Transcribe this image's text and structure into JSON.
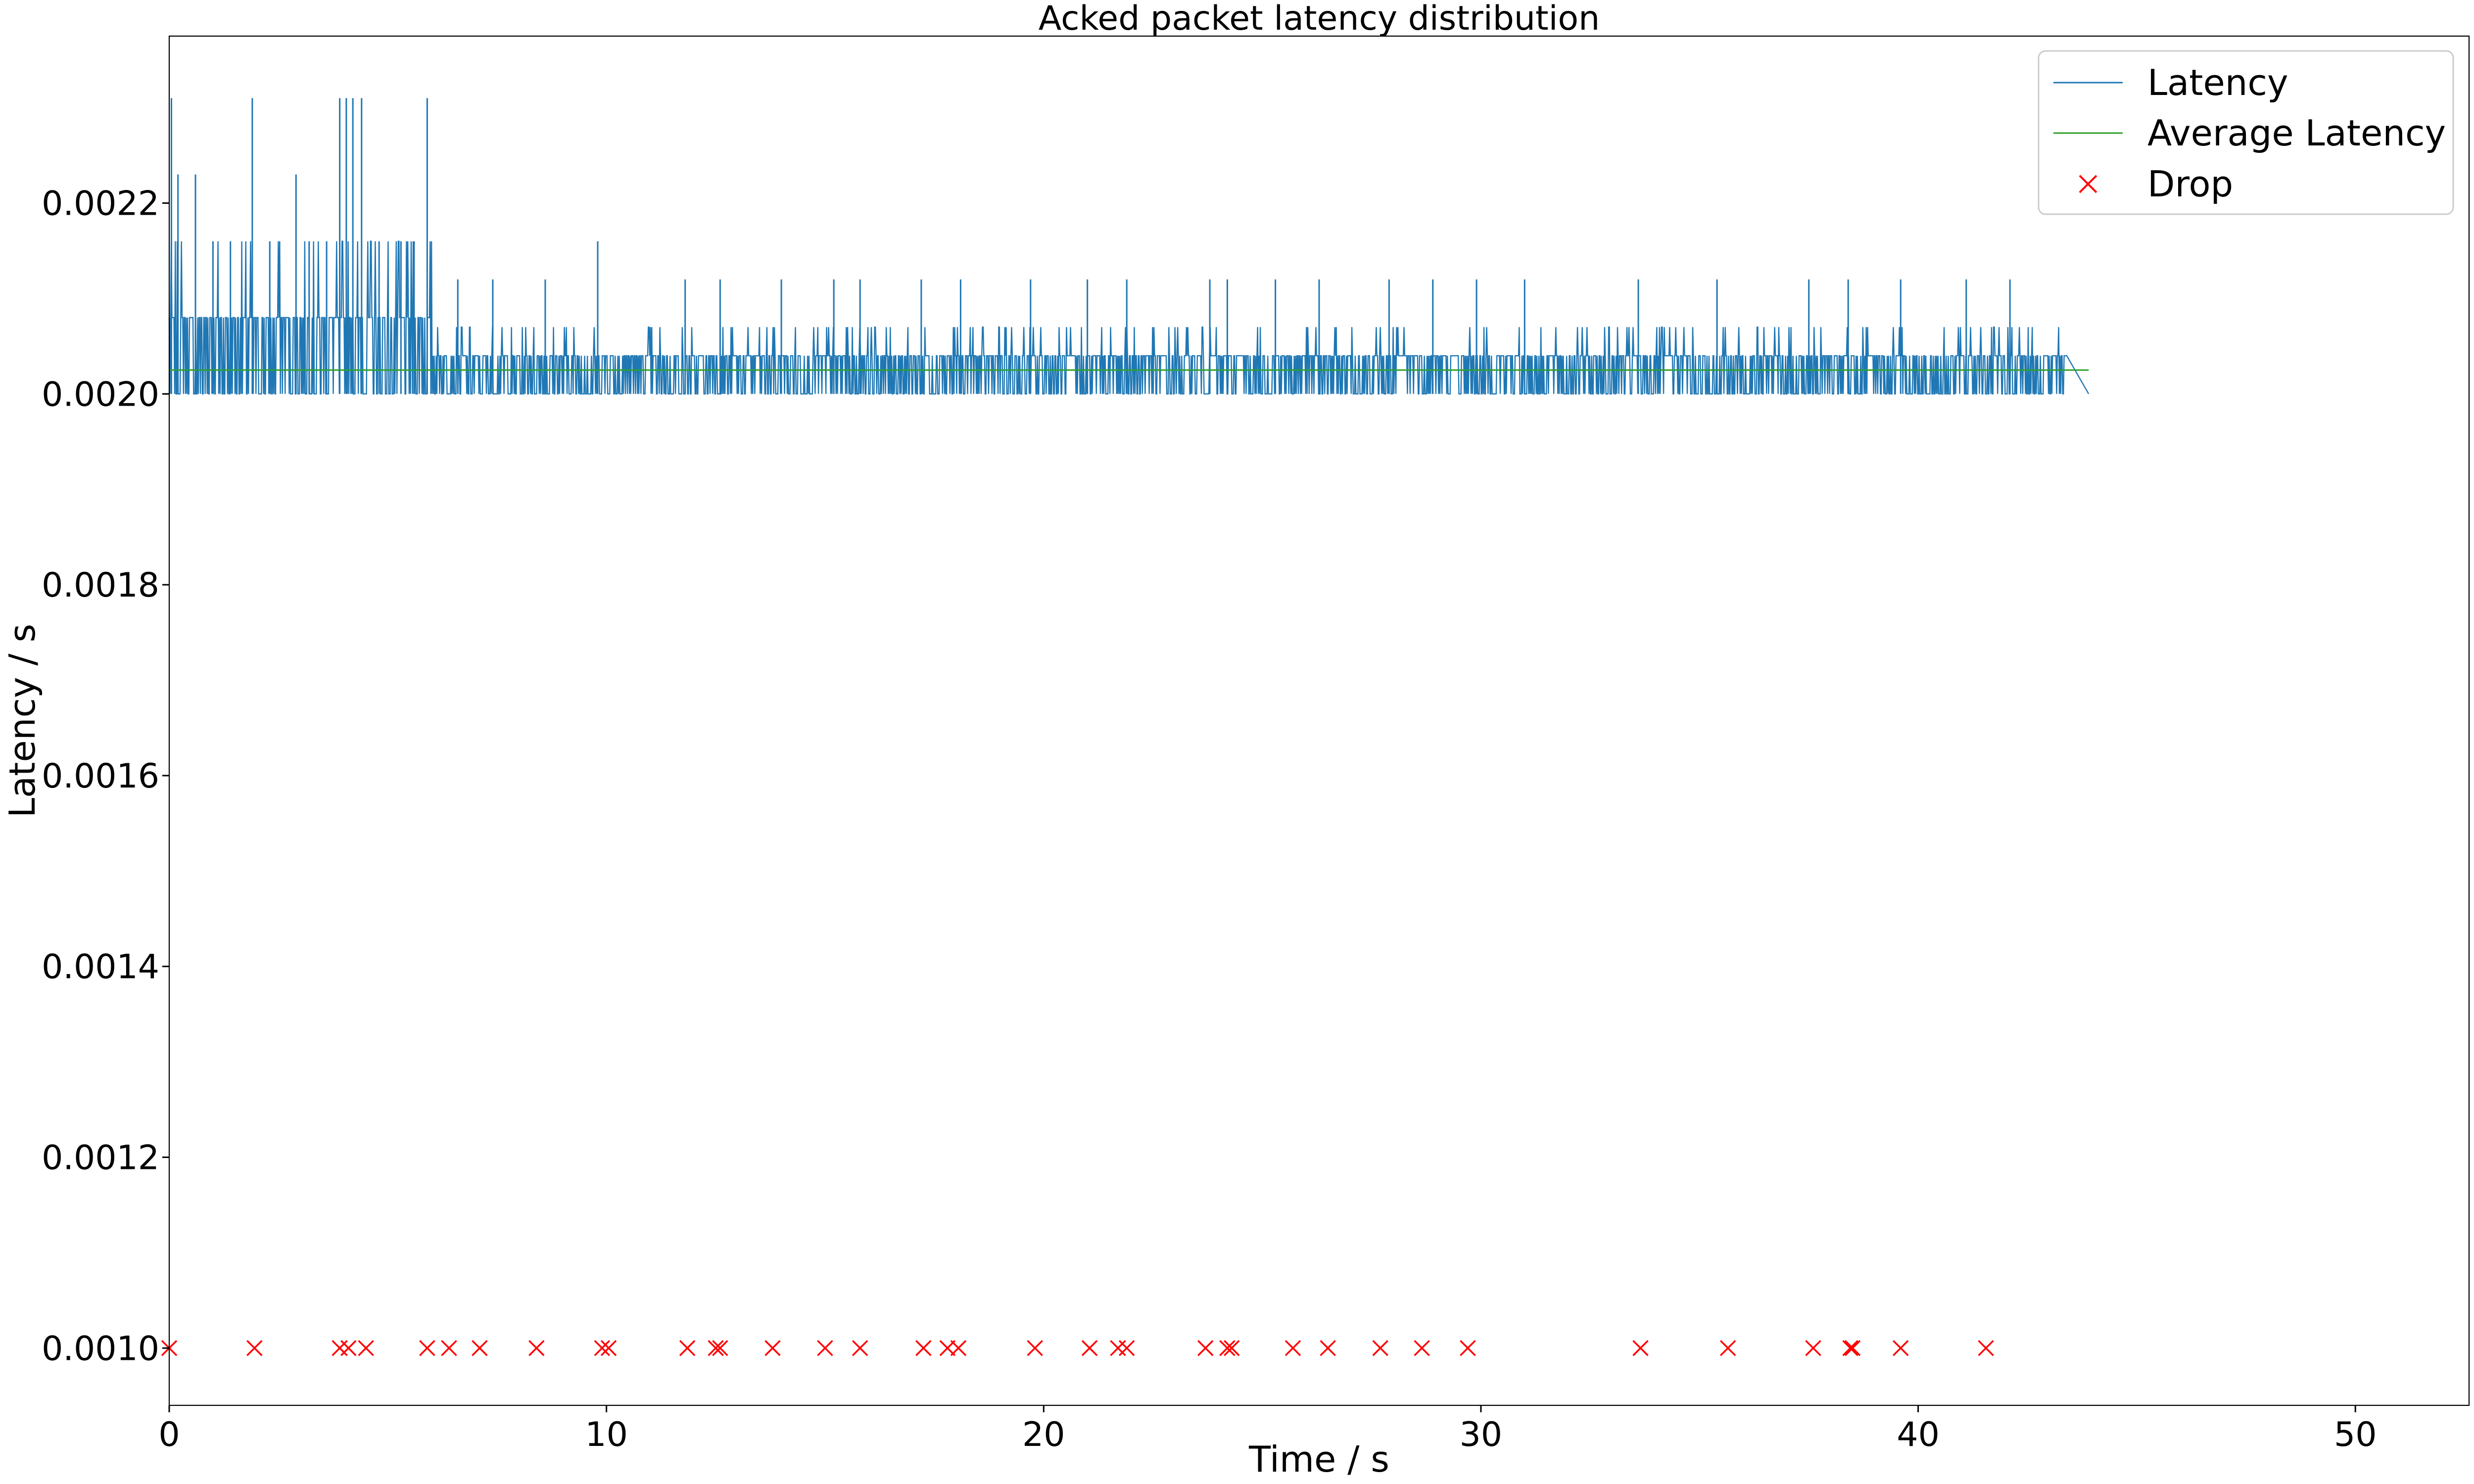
{
  "chart_data": {
    "type": "line",
    "title": "Acked packet latency distribution",
    "xlabel": "Time / s",
    "ylabel": "Latency / s",
    "xlim": [
      0,
      52.6
    ],
    "ylim": [
      0.00094,
      0.002375
    ],
    "x_ticks": [
      0,
      10,
      20,
      30,
      40,
      50
    ],
    "x_tick_labels": [
      "0",
      "10",
      "20",
      "30",
      "40",
      "50"
    ],
    "y_ticks": [
      0.001,
      0.0012,
      0.0014,
      0.0016,
      0.0018,
      0.002,
      0.0022
    ],
    "y_tick_labels": [
      "0.0010",
      "0.0012",
      "0.0014",
      "0.0016",
      "0.0018",
      "0.0020",
      "0.0022"
    ],
    "grid": false,
    "legend_position": "top-right",
    "legend": [
      "Latency",
      "Average Latency",
      "Drop"
    ],
    "colors": {
      "latency": "#1f77b4",
      "average": "#2ca02c",
      "drop": "#ff0000"
    },
    "series": [
      {
        "name": "Latency",
        "kind": "line",
        "x_range": [
          0,
          43.9
        ],
        "baseline": 0.002,
        "typical_levels": [
          {
            "x_from": 0,
            "x_to": 6.0,
            "level": 0.00208
          },
          {
            "x_from": 6.0,
            "x_to": 43.4,
            "level": 0.00204
          }
        ],
        "spikes": [
          {
            "x": 0.05,
            "y": 0.00231
          },
          {
            "x": 0.2,
            "y": 0.00223
          },
          {
            "x": 0.6,
            "y": 0.00223
          },
          {
            "x": 1.0,
            "y": 0.00216
          },
          {
            "x": 1.4,
            "y": 0.00216
          },
          {
            "x": 1.9,
            "y": 0.00231
          },
          {
            "x": 2.3,
            "y": 0.00216
          },
          {
            "x": 2.9,
            "y": 0.00223
          },
          {
            "x": 3.2,
            "y": 0.00216
          },
          {
            "x": 3.6,
            "y": 0.00216
          },
          {
            "x": 3.9,
            "y": 0.00231
          },
          {
            "x": 4.05,
            "y": 0.00231
          },
          {
            "x": 4.2,
            "y": 0.00231
          },
          {
            "x": 4.4,
            "y": 0.00231
          },
          {
            "x": 4.8,
            "y": 0.00216
          },
          {
            "x": 5.3,
            "y": 0.00216
          },
          {
            "x": 5.6,
            "y": 0.00216
          },
          {
            "x": 5.9,
            "y": 0.00231
          },
          {
            "x": 6.6,
            "y": 0.00212
          },
          {
            "x": 7.4,
            "y": 0.00212
          },
          {
            "x": 8.6,
            "y": 0.00212
          },
          {
            "x": 9.8,
            "y": 0.00216
          },
          {
            "x": 11.8,
            "y": 0.00212
          },
          {
            "x": 12.6,
            "y": 0.00212
          },
          {
            "x": 14.0,
            "y": 0.00212
          },
          {
            "x": 15.2,
            "y": 0.00212
          },
          {
            "x": 15.8,
            "y": 0.00212
          },
          {
            "x": 17.2,
            "y": 0.00212
          },
          {
            "x": 18.1,
            "y": 0.00212
          },
          {
            "x": 19.7,
            "y": 0.00212
          },
          {
            "x": 21.0,
            "y": 0.00212
          },
          {
            "x": 21.9,
            "y": 0.00212
          },
          {
            "x": 23.8,
            "y": 0.00212
          },
          {
            "x": 24.2,
            "y": 0.00212
          },
          {
            "x": 25.3,
            "y": 0.00212
          },
          {
            "x": 26.3,
            "y": 0.00212
          },
          {
            "x": 27.9,
            "y": 0.00212
          },
          {
            "x": 28.9,
            "y": 0.00212
          },
          {
            "x": 29.9,
            "y": 0.00212
          },
          {
            "x": 31.0,
            "y": 0.00212
          },
          {
            "x": 33.6,
            "y": 0.00212
          },
          {
            "x": 35.4,
            "y": 0.00212
          },
          {
            "x": 37.5,
            "y": 0.00212
          },
          {
            "x": 38.4,
            "y": 0.00212
          },
          {
            "x": 39.6,
            "y": 0.00212
          },
          {
            "x": 41.1,
            "y": 0.00212
          },
          {
            "x": 42.1,
            "y": 0.00212
          }
        ],
        "end": {
          "x": 43.9,
          "y": 0.002
        }
      },
      {
        "name": "Average Latency",
        "kind": "line",
        "x": [
          0,
          43.9
        ],
        "y": [
          0.002025,
          0.002025
        ]
      },
      {
        "name": "Drop",
        "kind": "scatter",
        "marker": "x",
        "y_value": 0.001,
        "x": [
          0,
          1.95,
          3.9,
          4.1,
          4.5,
          5.9,
          6.4,
          7.1,
          8.4,
          9.9,
          10.05,
          11.85,
          12.5,
          12.6,
          13.8,
          15.0,
          15.8,
          17.25,
          17.8,
          18.05,
          19.8,
          21.05,
          21.7,
          21.9,
          23.7,
          24.2,
          24.3,
          25.7,
          26.5,
          27.7,
          28.65,
          29.7,
          33.65,
          35.65,
          37.6,
          38.45,
          38.5,
          39.6,
          41.55
        ]
      }
    ]
  }
}
